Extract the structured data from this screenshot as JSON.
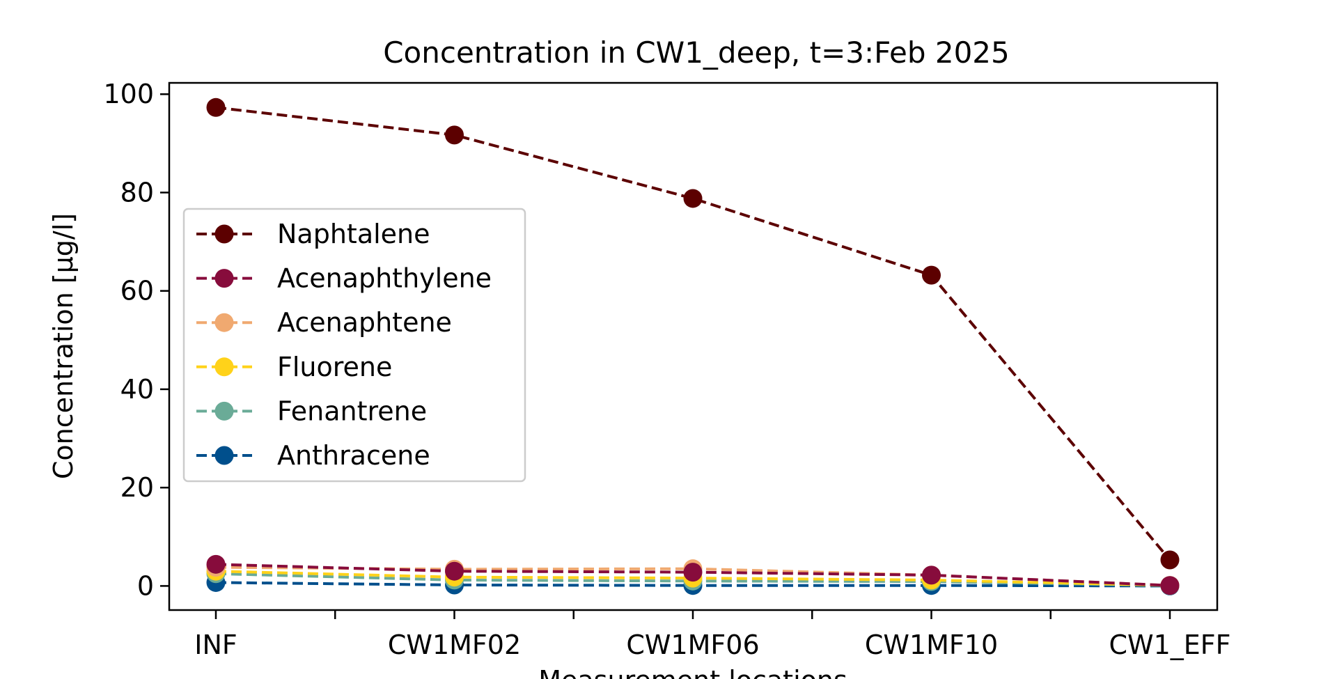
{
  "chart_data": {
    "type": "line",
    "title": "Concentration in CW1_deep, t=3:Feb 2025",
    "xlabel": "Measurement locations",
    "ylabel": "Concentration [µg/l]",
    "categories": [
      "INF",
      "CW1MF02",
      "CW1MF06",
      "CW1MF10",
      "CW1_EFF"
    ],
    "ylim": [
      -4.9,
      102.3
    ],
    "yticks": [
      0,
      20,
      40,
      60,
      80,
      100
    ],
    "ytick_labels": [
      "0",
      "20",
      "40",
      "60",
      "80",
      "100"
    ],
    "grid": false,
    "legend_position": "center-left",
    "line_style": "dashed",
    "marker": "circle",
    "series": [
      {
        "name": "Naphtalene",
        "color": "#5c0000",
        "values": [
          97.3,
          91.7,
          78.8,
          63.2,
          5.3
        ]
      },
      {
        "name": "Acenaphthylene",
        "color": "#870c3c",
        "values": [
          4.4,
          3.0,
          2.8,
          2.2,
          0.1
        ]
      },
      {
        "name": "Acenaphtene",
        "color": "#f0a970",
        "values": [
          3.8,
          3.4,
          3.5,
          2.2,
          0.1
        ]
      },
      {
        "name": "Fluorene",
        "color": "#ffd21a",
        "values": [
          3.0,
          1.8,
          1.6,
          1.2,
          0.1
        ]
      },
      {
        "name": "Fenantrene",
        "color": "#6aab97",
        "values": [
          2.5,
          1.2,
          1.0,
          0.9,
          0.1
        ]
      },
      {
        "name": "Anthracene",
        "color": "#004f8c",
        "values": [
          0.7,
          0.2,
          0.1,
          0.1,
          0.0
        ]
      }
    ]
  }
}
